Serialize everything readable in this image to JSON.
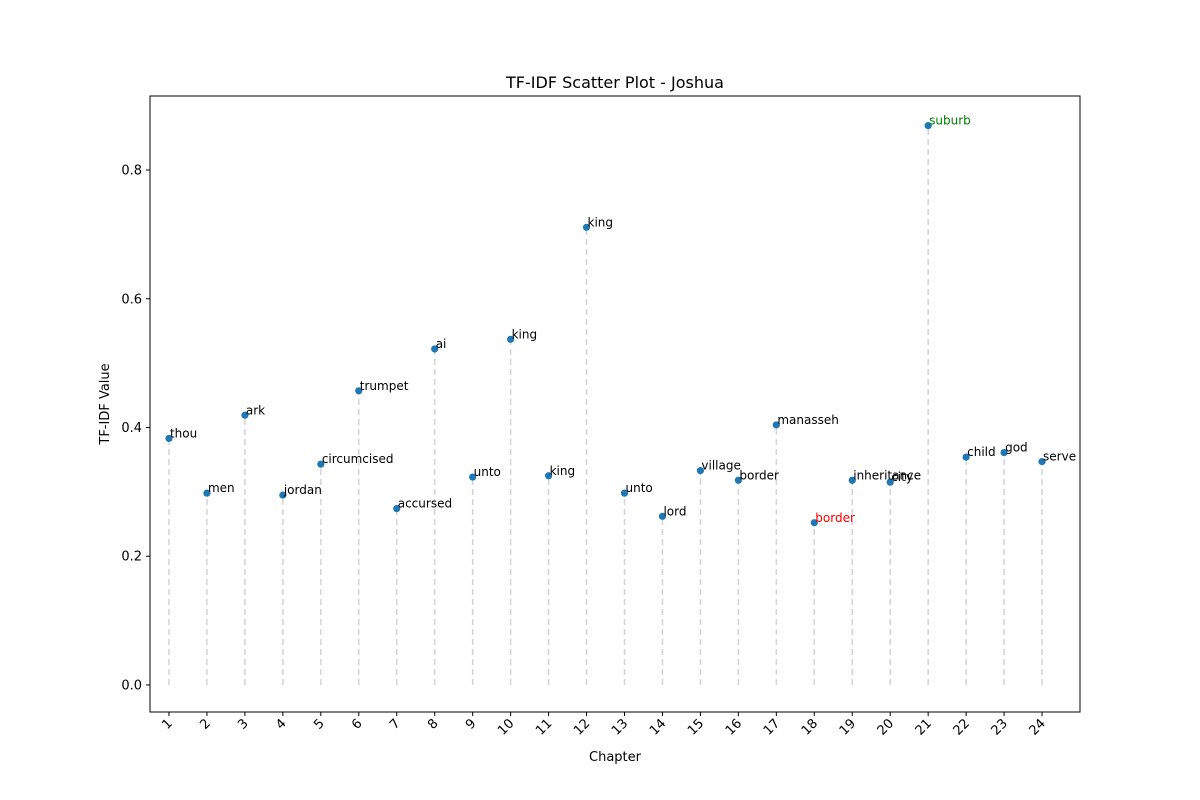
{
  "chart_data": {
    "type": "scatter",
    "title": "TF-IDF Scatter Plot - Joshua",
    "xlabel": "Chapter",
    "ylabel": "TF-IDF Value",
    "xlim": [
      0.5,
      25
    ],
    "ylim": [
      -0.042,
      0.915
    ],
    "yticks": [
      0.0,
      0.2,
      0.4,
      0.6,
      0.8
    ],
    "ytick_labels": [
      "0.0",
      "0.2",
      "0.4",
      "0.6",
      "0.8"
    ],
    "xticks": [
      1,
      2,
      3,
      4,
      5,
      6,
      7,
      8,
      9,
      10,
      11,
      12,
      13,
      14,
      15,
      16,
      17,
      18,
      19,
      20,
      21,
      22,
      23,
      24
    ],
    "xtick_labels": [
      "1",
      "2",
      "3",
      "4",
      "5",
      "6",
      "7",
      "8",
      "9",
      "10",
      "11",
      "12",
      "13",
      "14",
      "15",
      "16",
      "17",
      "18",
      "19",
      "20",
      "21",
      "22",
      "23",
      "24"
    ],
    "grid": false,
    "marker_color": "#1f77b4",
    "stem_color": "#d3d3d3",
    "points": [
      {
        "x": 1,
        "y": 0.383,
        "word": "thou",
        "color": "#000000"
      },
      {
        "x": 2,
        "y": 0.298,
        "word": "men",
        "color": "#000000"
      },
      {
        "x": 3,
        "y": 0.419,
        "word": "ark",
        "color": "#000000"
      },
      {
        "x": 4,
        "y": 0.295,
        "word": "jordan",
        "color": "#000000"
      },
      {
        "x": 5,
        "y": 0.343,
        "word": "circumcised",
        "color": "#000000"
      },
      {
        "x": 6,
        "y": 0.457,
        "word": "trumpet",
        "color": "#000000"
      },
      {
        "x": 7,
        "y": 0.274,
        "word": "accursed",
        "color": "#000000"
      },
      {
        "x": 8,
        "y": 0.522,
        "word": "ai",
        "color": "#000000"
      },
      {
        "x": 9,
        "y": 0.323,
        "word": "unto",
        "color": "#000000"
      },
      {
        "x": 10,
        "y": 0.537,
        "word": "king",
        "color": "#000000"
      },
      {
        "x": 11,
        "y": 0.325,
        "word": "king",
        "color": "#000000"
      },
      {
        "x": 12,
        "y": 0.711,
        "word": "king",
        "color": "#000000"
      },
      {
        "x": 13,
        "y": 0.298,
        "word": "unto",
        "color": "#000000"
      },
      {
        "x": 14,
        "y": 0.262,
        "word": "lord",
        "color": "#000000"
      },
      {
        "x": 15,
        "y": 0.333,
        "word": "village",
        "color": "#000000"
      },
      {
        "x": 16,
        "y": 0.318,
        "word": "border",
        "color": "#000000"
      },
      {
        "x": 17,
        "y": 0.404,
        "word": "manasseh",
        "color": "#000000"
      },
      {
        "x": 18,
        "y": 0.252,
        "word": "border",
        "color": "#ff0000"
      },
      {
        "x": 19,
        "y": 0.318,
        "word": "inheritance",
        "color": "#000000"
      },
      {
        "x": 20,
        "y": 0.315,
        "word": "city",
        "color": "#000000"
      },
      {
        "x": 21,
        "y": 0.869,
        "word": "suburb",
        "color": "#008000"
      },
      {
        "x": 22,
        "y": 0.354,
        "word": "child",
        "color": "#000000"
      },
      {
        "x": 23,
        "y": 0.361,
        "word": "god",
        "color": "#000000"
      },
      {
        "x": 24,
        "y": 0.347,
        "word": "serve",
        "color": "#000000"
      }
    ]
  }
}
